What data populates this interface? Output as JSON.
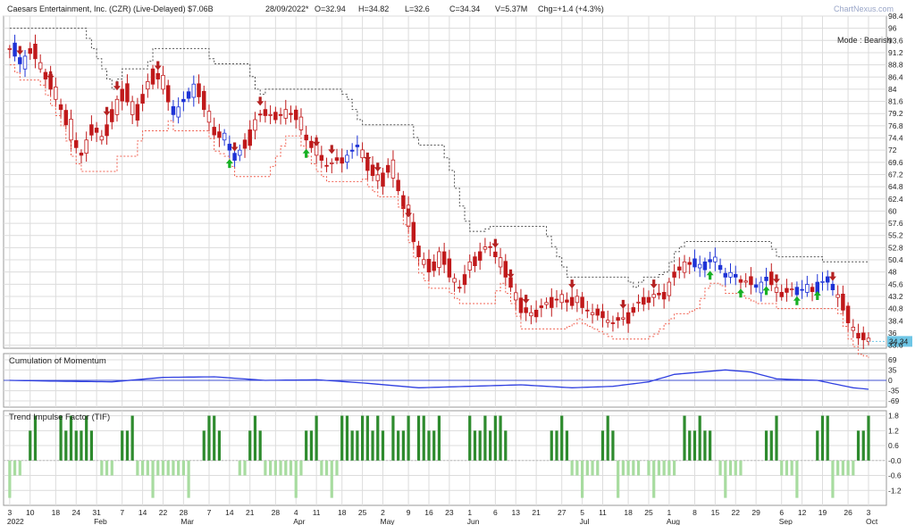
{
  "header": {
    "title": "Caesars Entertainment, Inc. (CZR) (Live-Delayed) $7.06B",
    "date": "28/09/2022*",
    "open": "O=32.94",
    "high": "H=34.82",
    "low": "L=32.6",
    "close": "C=34.34",
    "volume": "V=5.37M",
    "change": "Chg=+1.4 (+4.3%)",
    "watermark": "ChartNexus.com",
    "mode": "Mode : Bearish",
    "last_price": "34.34"
  },
  "colors": {
    "bear": "#c0191a",
    "bull": "#1e33d6",
    "stop": "#f06050",
    "resistance": "#555555",
    "up_arrow": "#17b024",
    "down_arrow": "#b52121",
    "momentum": "#2f3fe0",
    "tif_strong": "#2e8b2e",
    "tif_weak": "#a8dca0",
    "grid": "#dcdcdc",
    "price_tag": "#6ec6e6"
  },
  "chart_data": [
    {
      "type": "candlestick",
      "title": "Caesars Entertainment, Inc. (CZR)",
      "ylim": [
        33,
        98.4
      ],
      "y_ticks": [
        "98.4",
        "96",
        "93.6",
        "91.2",
        "88.8",
        "86.4",
        "84",
        "81.6",
        "79.2",
        "76.8",
        "74.4",
        "72",
        "69.6",
        "67.2",
        "64.8",
        "62.4",
        "60",
        "57.6",
        "55.2",
        "52.8",
        "50.4",
        "48",
        "45.6",
        "43.2",
        "40.8",
        "38.4",
        "36",
        "33.6"
      ],
      "x_tick_labels": [
        "3",
        "10",
        "18",
        "24",
        "31",
        "7",
        "14",
        "22",
        "28",
        "7",
        "14",
        "21",
        "28",
        "4",
        "11",
        "18",
        "25",
        "2",
        "9",
        "16",
        "23",
        "1",
        "6",
        "13",
        "21",
        "27",
        "5",
        "11",
        "18",
        "25",
        "1",
        "8",
        "15",
        "22",
        "29",
        "6",
        "12",
        "19",
        "26",
        "3"
      ],
      "month_labels": [
        "2022",
        "Feb",
        "Mar",
        "Apr",
        "May",
        "Jun",
        "Jul",
        "Aug",
        "Sep",
        "Oct"
      ],
      "anchors": [
        [
          0,
          92
        ],
        [
          2,
          89
        ],
        [
          4,
          92
        ],
        [
          6,
          88
        ],
        [
          8,
          84
        ],
        [
          10,
          80
        ],
        [
          12,
          74
        ],
        [
          14,
          71
        ],
        [
          16,
          77
        ],
        [
          18,
          74
        ],
        [
          20,
          80
        ],
        [
          22,
          84
        ],
        [
          24,
          79
        ],
        [
          26,
          83
        ],
        [
          28,
          88
        ],
        [
          30,
          84
        ],
        [
          32,
          79
        ],
        [
          34,
          82
        ],
        [
          36,
          85
        ],
        [
          38,
          80
        ],
        [
          40,
          75
        ],
        [
          42,
          74
        ],
        [
          44,
          70
        ],
        [
          46,
          74
        ],
        [
          48,
          78
        ],
        [
          50,
          80
        ],
        [
          52,
          78
        ],
        [
          54,
          80
        ],
        [
          56,
          78
        ],
        [
          58,
          74
        ],
        [
          60,
          71
        ],
        [
          62,
          69
        ],
        [
          64,
          70
        ],
        [
          66,
          71
        ],
        [
          68,
          73
        ],
        [
          70,
          68
        ],
        [
          72,
          66
        ],
        [
          74,
          69
        ],
        [
          76,
          64
        ],
        [
          78,
          57
        ],
        [
          80,
          51
        ],
        [
          82,
          48
        ],
        [
          84,
          52
        ],
        [
          86,
          47
        ],
        [
          88,
          45
        ],
        [
          90,
          50
        ],
        [
          92,
          52
        ],
        [
          94,
          53
        ],
        [
          96,
          49
        ],
        [
          98,
          45
        ],
        [
          100,
          40
        ],
        [
          102,
          40
        ],
        [
          104,
          41
        ],
        [
          106,
          43
        ],
        [
          108,
          42
        ],
        [
          110,
          43
        ],
        [
          112,
          41
        ],
        [
          114,
          40
        ],
        [
          116,
          39
        ],
        [
          118,
          38
        ],
        [
          120,
          39
        ],
        [
          122,
          41
        ],
        [
          124,
          43
        ],
        [
          126,
          43
        ],
        [
          128,
          44
        ],
        [
          130,
          48
        ],
        [
          132,
          50
        ],
        [
          134,
          49
        ],
        [
          136,
          50
        ],
        [
          138,
          50
        ],
        [
          140,
          47
        ],
        [
          142,
          47
        ],
        [
          144,
          46
        ],
        [
          146,
          45
        ],
        [
          148,
          47
        ],
        [
          150,
          44
        ],
        [
          152,
          44
        ],
        [
          154,
          45
        ],
        [
          156,
          44
        ],
        [
          158,
          46
        ],
        [
          160,
          46
        ],
        [
          162,
          43
        ],
        [
          164,
          38
        ],
        [
          166,
          35
        ],
        [
          168,
          34.34
        ]
      ],
      "bull_ranges": [
        [
          1,
          3
        ],
        [
          32,
          36
        ],
        [
          42,
          45
        ],
        [
          66,
          68
        ],
        [
          134,
          142
        ],
        [
          146,
          148
        ],
        [
          154,
          156
        ],
        [
          158,
          161
        ]
      ],
      "up_arrow_days": [
        43,
        58,
        137,
        143,
        148,
        154,
        158
      ],
      "down_arrow_days": [
        2,
        8,
        19,
        21,
        29,
        44,
        49,
        60,
        63,
        70,
        72,
        78,
        95,
        98,
        101,
        110,
        120,
        126,
        150,
        161
      ],
      "tag": "34.34"
    },
    {
      "type": "line",
      "title": "Cumulation of Momentum",
      "ylim": [
        -90,
        90
      ],
      "y_ticks": [
        "69",
        "35",
        "0",
        "-35",
        "-69"
      ],
      "anchors": [
        [
          0,
          0
        ],
        [
          10,
          -3
        ],
        [
          20,
          -5
        ],
        [
          30,
          10
        ],
        [
          40,
          12
        ],
        [
          50,
          0
        ],
        [
          60,
          2
        ],
        [
          70,
          -10
        ],
        [
          80,
          -25
        ],
        [
          90,
          -20
        ],
        [
          100,
          -15
        ],
        [
          110,
          -25
        ],
        [
          118,
          -20
        ],
        [
          125,
          -5
        ],
        [
          130,
          20
        ],
        [
          140,
          35
        ],
        [
          145,
          28
        ],
        [
          150,
          5
        ],
        [
          158,
          0
        ],
        [
          165,
          -25
        ],
        [
          168,
          -30
        ]
      ]
    },
    {
      "type": "bar",
      "title": "Trend Impulse Factor (TIF)",
      "ylim": [
        -1.8,
        2.0
      ],
      "y_ticks": [
        "1.8",
        "1.2",
        "0.6",
        "-0.0",
        "-0.6",
        "-1.2"
      ],
      "positive_ranges": [
        [
          4,
          5
        ],
        [
          10,
          16
        ],
        [
          22,
          24
        ],
        [
          38,
          41
        ],
        [
          47,
          49
        ],
        [
          58,
          60
        ],
        [
          65,
          73
        ],
        [
          75,
          78
        ],
        [
          80,
          84
        ],
        [
          90,
          97
        ],
        [
          106,
          109
        ],
        [
          116,
          118
        ],
        [
          132,
          137
        ],
        [
          148,
          150
        ],
        [
          158,
          160
        ],
        [
          166,
          169
        ]
      ],
      "negative_ranges": [
        [
          0,
          2
        ],
        [
          18,
          20
        ],
        [
          25,
          35
        ],
        [
          38,
          39
        ],
        [
          45,
          48
        ],
        [
          50,
          57
        ],
        [
          60,
          64
        ],
        [
          70,
          72
        ],
        [
          76,
          78
        ],
        [
          110,
          115
        ],
        [
          118,
          123
        ],
        [
          125,
          130
        ],
        [
          139,
          143
        ],
        [
          150,
          154
        ],
        [
          160,
          166
        ]
      ]
    }
  ]
}
